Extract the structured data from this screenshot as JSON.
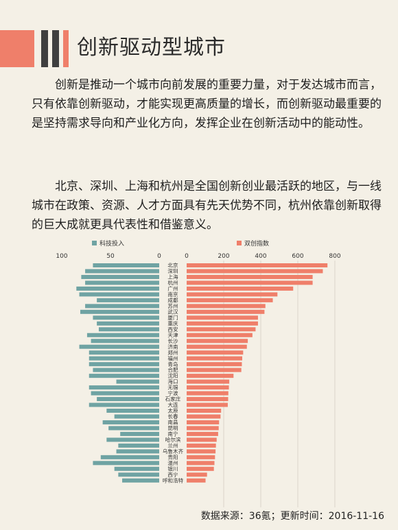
{
  "header": {
    "title": "创新驱动型城市"
  },
  "paragraphs": [
    "创新是推动一个城市向前发展的重要力量，对于发达城市而言，只有依靠创新驱动，才能实现更高质量的增长，而创新驱动最重要的是坚持需求导向和产业化方向，发挥企业在创新活动中的能动性。",
    "北京、深圳、上海和杭州是全国创新创业最活跃的地区，与一线城市在政策、资源、人才方面具有先天优势不同，杭州依靠创新取得的巨大成就更具代表性和借鉴意义。"
  ],
  "colors": {
    "left_series": "#6fa3a3",
    "right_series": "#ef7f6a",
    "deco_dark": "#3f3f3f"
  },
  "chart_data": {
    "type": "bar",
    "orientation": "horizontal-butterfly",
    "categories": [
      "北京",
      "深圳",
      "上海",
      "杭州",
      "广州",
      "南京",
      "成都",
      "苏州",
      "武汉",
      "厦门",
      "重庆",
      "西安",
      "天津",
      "长沙",
      "济南",
      "郑州",
      "福州",
      "青岛",
      "合肥",
      "沈阳",
      "海口",
      "无锡",
      "宁波",
      "石家庄",
      "大连",
      "太原",
      "长春",
      "南昌",
      "昆明",
      "南宁",
      "哈尔滨",
      "兰州",
      "乌鲁木齐",
      "贵阳",
      "温州",
      "银川",
      "西宁",
      "呼和浩特"
    ],
    "series": [
      {
        "name": "科技投入",
        "xlim": [
          100,
          0
        ],
        "ticks": [
          100,
          50,
          0
        ],
        "values": [
          68,
          76,
          80,
          76,
          85,
          82,
          64,
          76,
          81,
          68,
          64,
          62,
          74,
          70,
          82,
          72,
          72,
          72,
          68,
          72,
          44,
          72,
          70,
          64,
          72,
          54,
          46,
          58,
          52,
          40,
          54,
          42,
          44,
          60,
          68,
          46,
          42,
          38
        ]
      },
      {
        "name": "双创指数",
        "xlim": [
          0,
          800
        ],
        "ticks": [
          0,
          200,
          400,
          600,
          800
        ],
        "values": [
          760,
          735,
          680,
          680,
          575,
          490,
          465,
          425,
          420,
          385,
          385,
          372,
          355,
          330,
          325,
          305,
          300,
          298,
          295,
          253,
          230,
          228,
          225,
          224,
          222,
          186,
          183,
          175,
          173,
          170,
          162,
          158,
          156,
          153,
          150,
          147,
          110,
          102
        ]
      }
    ]
  },
  "source_note": "数据来源：36氪；更新时间：2016-11-16"
}
